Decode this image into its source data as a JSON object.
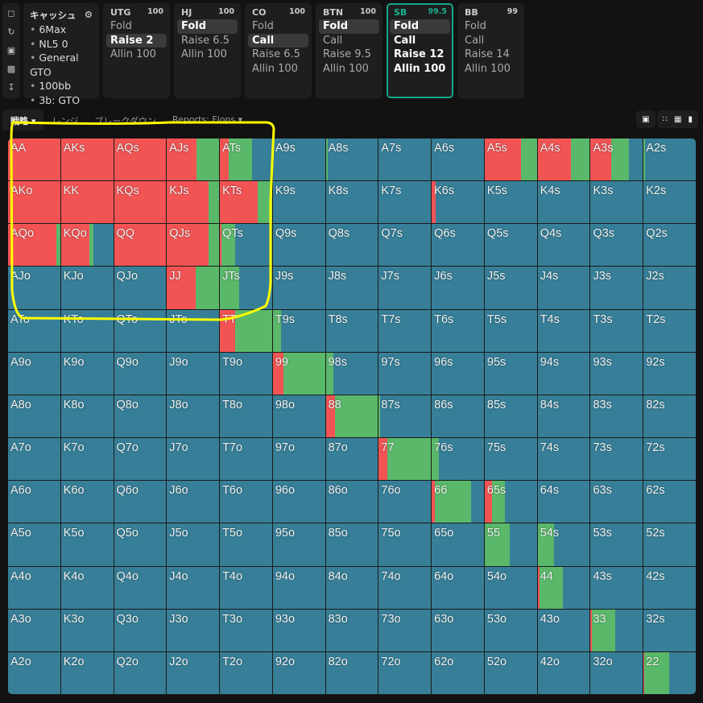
{
  "sidebar_icons": [
    "bookmark-icon",
    "refresh-icon",
    "save-icon",
    "gamepad-icon",
    "text-cursor-icon"
  ],
  "info": {
    "title": "キャッシュ",
    "items": [
      "6Max",
      "NL5 0",
      "General GTO",
      "100bb",
      "3b: GTO"
    ]
  },
  "positions": [
    {
      "name": "UTG",
      "stack": "100",
      "actions": [
        "Fold",
        "Raise 2",
        "Allin 100"
      ],
      "selected": 1
    },
    {
      "name": "HJ",
      "stack": "100",
      "actions": [
        "Fold",
        "Raise 6.5",
        "Allin 100"
      ],
      "selected": 0
    },
    {
      "name": "CO",
      "stack": "100",
      "actions": [
        "Fold",
        "Call",
        "Raise 6.5",
        "Allin 100"
      ],
      "selected": 1
    },
    {
      "name": "BTN",
      "stack": "100",
      "actions": [
        "Fold",
        "Call",
        "Raise 9.5",
        "Allin 100"
      ],
      "selected": 0
    },
    {
      "name": "SB",
      "stack": "99.5",
      "actions": [
        "Fold",
        "Call",
        "Raise 12",
        "Allin 100"
      ],
      "selected": 0,
      "active": true
    },
    {
      "name": "BB",
      "stack": "99",
      "actions": [
        "Fold",
        "Call",
        "Raise 14",
        "Allin 100"
      ],
      "selected": -1
    }
  ],
  "tabs": [
    "戦略 ▾",
    "レンジ",
    "ブレークダウン",
    "Reports: Flops ▾"
  ],
  "colors": {
    "raise": "#f25454",
    "call": "#5ab86a",
    "fold": "#377f98",
    "active": "#13a88a",
    "annotation": "#ffff00"
  },
  "grid": {
    "ranks": [
      "A",
      "K",
      "Q",
      "J",
      "T",
      "9",
      "8",
      "7",
      "6",
      "5",
      "4",
      "3",
      "2"
    ],
    "rows": [
      [
        "AA",
        "AKs",
        "AQs",
        "AJs",
        "ATs",
        "A9s",
        "A8s",
        "A7s",
        "A6s",
        "A5s",
        "A4s",
        "A3s",
        "A2s"
      ],
      [
        "AKo",
        "KK",
        "KQs",
        "KJs",
        "KTs",
        "K9s",
        "K8s",
        "K7s",
        "K6s",
        "K5s",
        "K4s",
        "K3s",
        "K2s"
      ],
      [
        "AQo",
        "KQo",
        "QQ",
        "QJs",
        "QTs",
        "Q9s",
        "Q8s",
        "Q7s",
        "Q6s",
        "Q5s",
        "Q4s",
        "Q3s",
        "Q2s"
      ],
      [
        "AJo",
        "KJo",
        "QJo",
        "JJ",
        "JTs",
        "J9s",
        "J8s",
        "J7s",
        "J6s",
        "J5s",
        "J4s",
        "J3s",
        "J2s"
      ],
      [
        "ATo",
        "KTo",
        "QTo",
        "JTo",
        "TT",
        "T9s",
        "T8s",
        "T7s",
        "T6s",
        "T5s",
        "T4s",
        "T3s",
        "T2s"
      ],
      [
        "A9o",
        "K9o",
        "Q9o",
        "J9o",
        "T9o",
        "99",
        "98s",
        "97s",
        "96s",
        "95s",
        "94s",
        "93s",
        "92s"
      ],
      [
        "A8o",
        "K8o",
        "Q8o",
        "J8o",
        "T8o",
        "98o",
        "88",
        "87s",
        "86s",
        "85s",
        "84s",
        "83s",
        "82s"
      ],
      [
        "A7o",
        "K7o",
        "Q7o",
        "J7o",
        "T7o",
        "97o",
        "87o",
        "77",
        "76s",
        "75s",
        "74s",
        "73s",
        "72s"
      ],
      [
        "A6o",
        "K6o",
        "Q6o",
        "J6o",
        "T6o",
        "96o",
        "86o",
        "76o",
        "66",
        "65s",
        "64s",
        "63s",
        "62s"
      ],
      [
        "A5o",
        "K5o",
        "Q5o",
        "J5o",
        "T5o",
        "95o",
        "85o",
        "75o",
        "65o",
        "55",
        "54s",
        "53s",
        "52s"
      ],
      [
        "A4o",
        "K4o",
        "Q4o",
        "J4o",
        "T4o",
        "94o",
        "84o",
        "74o",
        "64o",
        "54o",
        "44",
        "43s",
        "42s"
      ],
      [
        "A3o",
        "K3o",
        "Q3o",
        "J3o",
        "T3o",
        "93o",
        "83o",
        "73o",
        "63o",
        "53o",
        "43o",
        "33",
        "32s"
      ],
      [
        "A2o",
        "K2o",
        "Q2o",
        "J2o",
        "T2o",
        "92o",
        "82o",
        "72o",
        "62o",
        "52o",
        "42o",
        "32o",
        "22"
      ]
    ]
  },
  "strategy_raise_call": {
    "AA": [
      1,
      0
    ],
    "AKs": [
      1,
      0
    ],
    "AQs": [
      1,
      0
    ],
    "AJs": [
      0.57,
      0.43
    ],
    "ATs": [
      0.17,
      0.45
    ],
    "A8s": [
      0,
      0.04
    ],
    "A5s": [
      0.7,
      0.3
    ],
    "A4s": [
      0.64,
      0.36
    ],
    "A3s": [
      0.4,
      0.33
    ],
    "A2s": [
      0,
      0.02
    ],
    "AKo": [
      1,
      0
    ],
    "KK": [
      1,
      0
    ],
    "KQs": [
      1,
      0
    ],
    "KJs": [
      0.8,
      0.2
    ],
    "KTs": [
      0.72,
      0.28
    ],
    "K6s": [
      0.07,
      0
    ],
    "AQo": [
      0.93,
      0.07
    ],
    "KQo": [
      0.55,
      0.07
    ],
    "QQ": [
      1,
      0
    ],
    "QJs": [
      0.8,
      0.2
    ],
    "QTs": [
      0.03,
      0.27
    ],
    "JJ": [
      0.55,
      0.45
    ],
    "JTs": [
      0,
      0.37
    ],
    "TT": [
      0.3,
      0.7
    ],
    "T9s": [
      0,
      0.15
    ],
    "99": [
      0.2,
      0.8
    ],
    "98s": [
      0,
      0.15
    ],
    "88": [
      0.18,
      0.82
    ],
    "87s": [
      0,
      0.03
    ],
    "77": [
      0.17,
      0.83
    ],
    "76s": [
      0,
      0.14
    ],
    "66": [
      0.06,
      0.7
    ],
    "65s": [
      0.14,
      0.25
    ],
    "55": [
      0,
      0.48
    ],
    "54s": [
      0.01,
      0.3
    ],
    "44": [
      0.04,
      0.44
    ],
    "33": [
      0.03,
      0.44
    ],
    "22": [
      0.01,
      0.48
    ]
  }
}
